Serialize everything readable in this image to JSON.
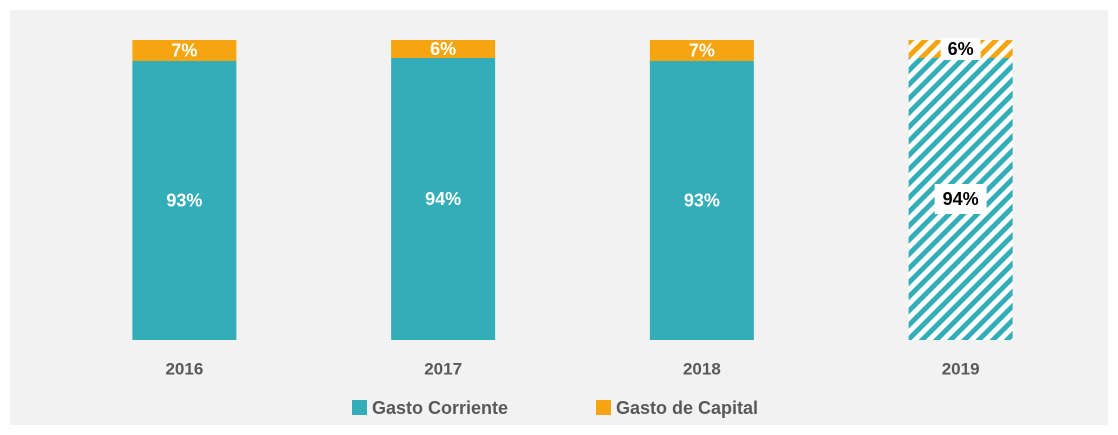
{
  "chart_data": {
    "type": "stacked_bar",
    "categories": [
      "2016",
      "2017",
      "2018",
      "2019"
    ],
    "series": [
      {
        "name": "Gasto Corriente",
        "color": "#33aeb8",
        "values": [
          93,
          94,
          93,
          94
        ],
        "value_labels": [
          "93%",
          "94%",
          "93%",
          "94%"
        ]
      },
      {
        "name": "Gasto de Capital",
        "color": "#f5a50f",
        "values": [
          7,
          6,
          7,
          6
        ],
        "value_labels": [
          "7%",
          "6%",
          "7%",
          "6%"
        ]
      }
    ],
    "hatched": [
      false,
      false,
      false,
      true
    ],
    "ylim": [
      0,
      100
    ],
    "legend": "bottom"
  }
}
